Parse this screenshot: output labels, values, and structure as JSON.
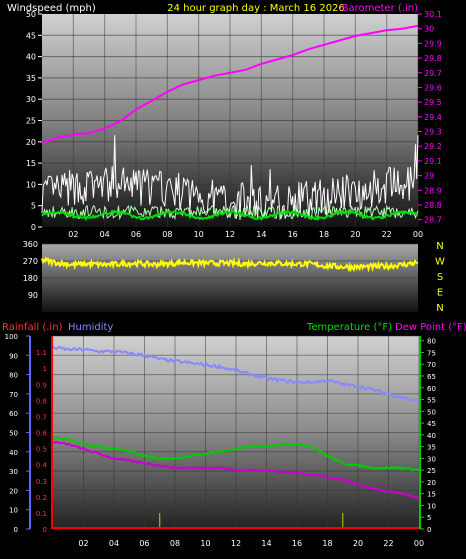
{
  "header": {
    "left_label": "Windspeed (mph)",
    "title": "24 hour graph day : March 16 2026",
    "right_label": "Barometer (.in)"
  },
  "compass": [
    "N",
    "W",
    "S",
    "E",
    "N"
  ],
  "bottom_header": {
    "rainfall_label": "Rainfall (.in)",
    "humidity_label": "Humidity",
    "temperature_label": "Temperature (°F)",
    "dewpoint_label": "Dew Point (°F)"
  },
  "colors": {
    "wind_gust": "#ffffff",
    "wind_avg": "#aaffaa",
    "wind_smooth": "#00dd00",
    "barometer": "#ff00ff",
    "direction": "#ffff00",
    "humidity": "#8888ff",
    "temperature": "#00cc00",
    "dewpoint": "#cc00cc",
    "rain": "#ff0000"
  },
  "chart_data": [
    {
      "type": "line",
      "name": "wind-barometer",
      "x_ticks": [
        "02",
        "04",
        "06",
        "08",
        "10",
        "12",
        "14",
        "16",
        "18",
        "20",
        "22",
        "00"
      ],
      "y_left_ticks": [
        "0",
        "5",
        "10",
        "15",
        "20",
        "25",
        "30",
        "35",
        "40",
        "45",
        "50"
      ],
      "y_left_range": [
        0,
        50
      ],
      "y_right_ticks": [
        "28.7",
        "28.8",
        "28.9",
        "29",
        "29.1",
        "29.2",
        "29.3",
        "29.4",
        "29.5",
        "29.6",
        "29.7",
        "29.8",
        "29.9",
        "30",
        "30.1"
      ],
      "y_right_range": [
        28.65,
        30.1
      ],
      "series": [
        {
          "name": "Barometer (.in)",
          "axis": "right",
          "x": [
            0,
            1,
            2,
            3,
            4,
            5,
            6,
            7,
            8,
            9,
            10,
            11,
            12,
            13,
            14,
            15,
            16,
            17,
            18,
            19,
            20,
            21,
            22,
            23,
            24
          ],
          "values": [
            29.22,
            29.26,
            29.28,
            29.29,
            29.32,
            29.37,
            29.45,
            29.51,
            29.57,
            29.62,
            29.65,
            29.68,
            29.7,
            29.72,
            29.76,
            29.79,
            29.82,
            29.86,
            29.89,
            29.92,
            29.95,
            29.97,
            29.99,
            30.0,
            30.02
          ]
        }
      ]
    },
    {
      "type": "line",
      "name": "wind-direction",
      "y_ticks": [
        "360",
        "270",
        "180",
        "90"
      ],
      "y_range": [
        0,
        360
      ],
      "series": [
        {
          "axis": "left",
          "x": [
            0,
            1,
            2,
            3,
            4,
            5,
            6,
            7,
            8,
            9,
            10,
            11,
            12,
            13,
            14,
            15,
            16,
            17,
            18,
            19,
            20,
            21,
            22,
            23,
            24
          ],
          "values": [
            275,
            260,
            250,
            255,
            250,
            255,
            258,
            252,
            255,
            262,
            260,
            258,
            258,
            255,
            260,
            258,
            255,
            255,
            245,
            240,
            238,
            240,
            242,
            250,
            262
          ]
        }
      ]
    },
    {
      "type": "line",
      "name": "temperature-humidity",
      "x_ticks": [
        "02",
        "04",
        "06",
        "08",
        "10",
        "12",
        "14",
        "16",
        "18",
        "20",
        "22",
        "00"
      ],
      "y_left_ticks": [
        "0",
        "10",
        "20",
        "30",
        "40",
        "50",
        "60",
        "70",
        "80",
        "90",
        "100"
      ],
      "y_left_range": [
        0,
        100
      ],
      "y_rain_ticks": [
        "0",
        "0.1",
        "0.2",
        "0.3",
        "0.4",
        "0.5",
        "0.6",
        "0.7",
        "0.8",
        "0.9",
        "1",
        "1.1"
      ],
      "y_rain_range": [
        0,
        1.2
      ],
      "y_right_ticks": [
        "0",
        "5",
        "10",
        "15",
        "20",
        "25",
        "30",
        "35",
        "40",
        "45",
        "50",
        "55",
        "60",
        "65",
        "70",
        "75",
        "80"
      ],
      "y_right_range": [
        0,
        82
      ],
      "series": [
        {
          "name": "Humidity",
          "axis": "left",
          "x": [
            0,
            1,
            2,
            3,
            4,
            5,
            6,
            7,
            8,
            9,
            10,
            11,
            12,
            13,
            14,
            15,
            16,
            17,
            18,
            19,
            20,
            21,
            22,
            23,
            24
          ],
          "values": [
            94,
            93,
            93,
            92,
            92,
            91,
            90,
            88,
            87,
            86,
            85,
            84,
            82,
            80,
            78,
            77,
            76,
            76,
            77,
            75,
            74,
            72,
            70,
            68,
            66
          ]
        },
        {
          "name": "Temperature (°F)",
          "axis": "right",
          "x": [
            0,
            1,
            2,
            3,
            4,
            5,
            6,
            7,
            8,
            9,
            10,
            11,
            12,
            13,
            14,
            15,
            16,
            17,
            18,
            19,
            20,
            21,
            22,
            23,
            24
          ],
          "values": [
            39,
            38,
            36,
            35,
            34,
            33,
            31,
            30,
            30,
            31,
            32,
            33,
            34,
            35,
            35,
            36,
            36,
            35,
            31,
            28,
            27,
            26,
            26,
            26,
            25
          ]
        },
        {
          "name": "Dew Point (°F)",
          "axis": "right",
          "x": [
            0,
            1,
            2,
            3,
            4,
            5,
            6,
            7,
            8,
            9,
            10,
            11,
            12,
            13,
            14,
            15,
            16,
            17,
            18,
            19,
            20,
            21,
            22,
            23,
            24
          ],
          "values": [
            37,
            36,
            34,
            32,
            30,
            29,
            28,
            27,
            26,
            26,
            26,
            26,
            25,
            25,
            25,
            24,
            24,
            23,
            22,
            21,
            19,
            17,
            16,
            15,
            13
          ]
        },
        {
          "name": "Rainfall (.in)",
          "axis": "rain",
          "x": [
            0,
            24
          ],
          "values": [
            0,
            0
          ]
        }
      ],
      "rain_markers": [
        7.0,
        19.0
      ]
    }
  ]
}
